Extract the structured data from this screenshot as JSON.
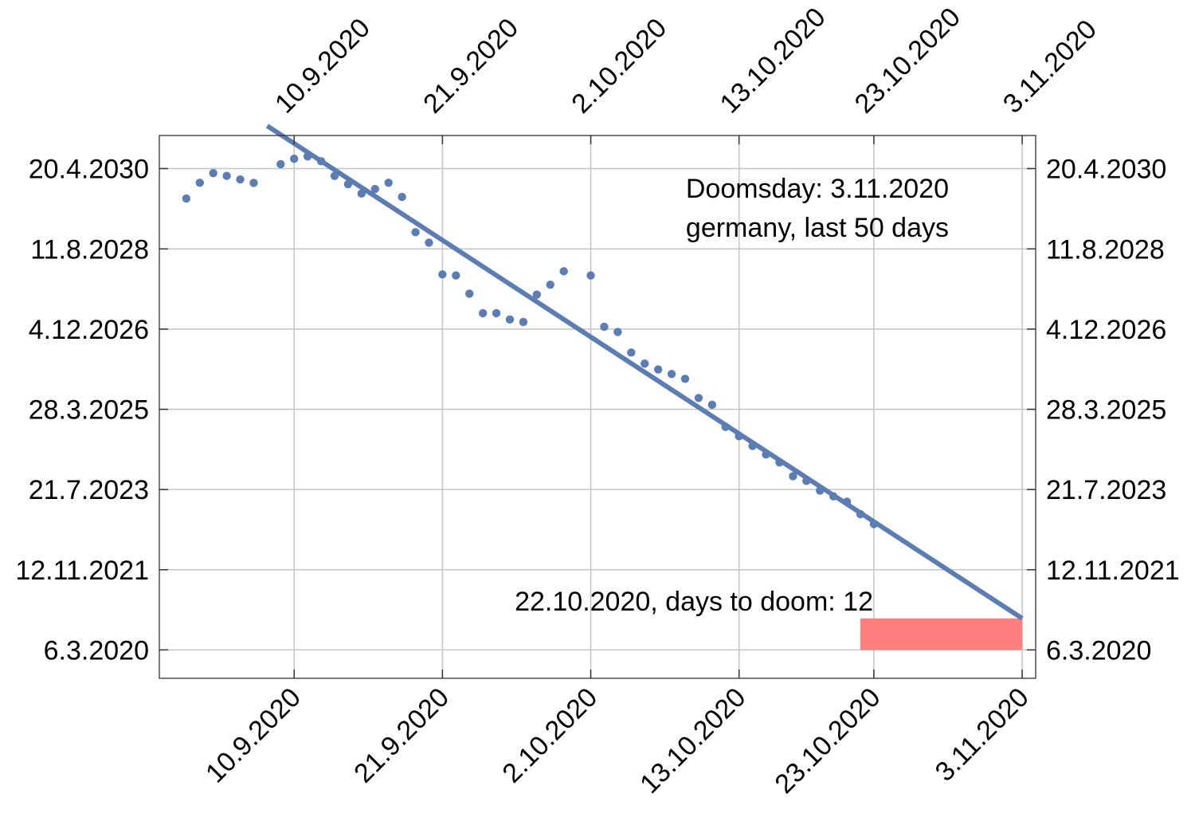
{
  "chart_data": {
    "type": "scatter",
    "x_axis": {
      "kind": "date",
      "range": [
        "2020-08-31",
        "2020-11-04"
      ],
      "ticks": [
        "2020-09-10",
        "2020-09-21",
        "2020-10-02",
        "2020-10-13",
        "2020-10-23",
        "2020-11-03"
      ],
      "tick_labels": [
        "10.9.2020",
        "21.9.2020",
        "2.10.2020",
        "13.10.2020",
        "23.10.2020",
        "3.11.2020"
      ],
      "position": "top and bottom, labels rotated"
    },
    "y_axis": {
      "kind": "date",
      "range": [
        "2019-08-01",
        "2030-12-30"
      ],
      "ticks": [
        "2020-03-06",
        "2021-11-12",
        "2023-07-21",
        "2025-03-28",
        "2026-12-04",
        "2028-08-11",
        "2030-04-20"
      ],
      "tick_labels": [
        "6.3.2020",
        "12.11.2021",
        "21.7.2023",
        "28.3.2025",
        "4.12.2026",
        "11.8.2028",
        "20.4.2030"
      ],
      "position": "left and right"
    },
    "grid": true,
    "series": [
      {
        "kind": "points",
        "color": "#5b7db4",
        "x": [
          "2020-09-02",
          "2020-09-03",
          "2020-09-04",
          "2020-09-05",
          "2020-09-06",
          "2020-09-07",
          "2020-09-09",
          "2020-09-10",
          "2020-09-11",
          "2020-09-12",
          "2020-09-13",
          "2020-09-14",
          "2020-09-15",
          "2020-09-16",
          "2020-09-17",
          "2020-09-18",
          "2020-09-19",
          "2020-09-20",
          "2020-09-21",
          "2020-09-22",
          "2020-09-23",
          "2020-09-24",
          "2020-09-25",
          "2020-09-26",
          "2020-09-27",
          "2020-09-28",
          "2020-09-29",
          "2020-09-30",
          "2020-10-02",
          "2020-10-03",
          "2020-10-04",
          "2020-10-05",
          "2020-10-06",
          "2020-10-07",
          "2020-10-08",
          "2020-10-09",
          "2020-10-10",
          "2020-10-11",
          "2020-10-12",
          "2020-10-13",
          "2020-10-14",
          "2020-10-15",
          "2020-10-16",
          "2020-10-17",
          "2020-10-18",
          "2020-10-19",
          "2020-10-20",
          "2020-10-21",
          "2020-10-22",
          "2020-10-23"
        ],
        "y": [
          "2029-09-02",
          "2030-01-01",
          "2030-03-16",
          "2030-02-23",
          "2030-01-26",
          "2029-12-31",
          "2030-05-24",
          "2030-07-04",
          "2030-07-22",
          "2030-06-15",
          "2030-02-23",
          "2029-12-21",
          "2029-10-10",
          "2029-11-14",
          "2030-01-01",
          "2029-09-14",
          "2028-12-17",
          "2028-09-28",
          "2028-01-28",
          "2028-01-20",
          "2027-09-02",
          "2027-04-05",
          "2027-04-05",
          "2027-02-16",
          "2027-01-28",
          "2027-08-26",
          "2027-11-10",
          "2028-02-21",
          "2028-01-20",
          "2026-12-22",
          "2026-11-12",
          "2026-06-07",
          "2026-03-14",
          "2026-01-28",
          "2025-12-24",
          "2025-11-17",
          "2025-06-23",
          "2025-05-02",
          "2024-11-13",
          "2024-09-02",
          "2024-06-20",
          "2024-04-15",
          "2024-02-14",
          "2023-10-31",
          "2023-09-25",
          "2023-07-13",
          "2023-05-30",
          "2023-04-18",
          "2023-01-13",
          "2022-10-28"
        ]
      },
      {
        "kind": "line",
        "color": "#5b7db4",
        "x": [
          "2020-09-08",
          "2020-11-03"
        ],
        "y": [
          "2031-03-14",
          "2020-11-03"
        ]
      }
    ],
    "highlight_band": {
      "color": "#ff7f7f",
      "x_range": [
        "2020-10-22",
        "2020-11-03"
      ],
      "y_range": [
        "2020-03-06",
        "2020-11-03"
      ]
    },
    "annotations": [
      "Doomsday: 3.11.2020",
      "germany, last 50 days",
      "22.10.2020, days to doom: 12"
    ]
  }
}
